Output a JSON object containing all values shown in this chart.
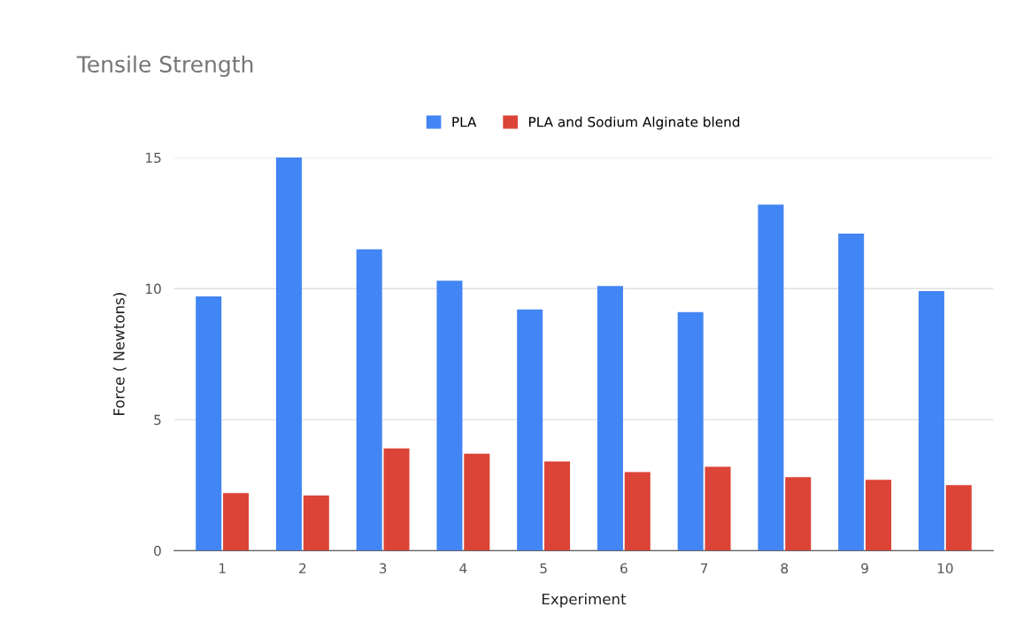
{
  "chart_data": {
    "type": "bar",
    "title": "Tensile Strength",
    "xlabel": "Experiment",
    "ylabel": "Force ( Newtons)",
    "categories": [
      "1",
      "2",
      "3",
      "4",
      "5",
      "6",
      "7",
      "8",
      "9",
      "10"
    ],
    "series": [
      {
        "name": "PLA",
        "color": "#4285f4",
        "values": [
          9.7,
          15,
          11.5,
          10.3,
          9.2,
          10.1,
          9.1,
          13.2,
          12.1,
          9.9
        ]
      },
      {
        "name": "PLA and Sodium Alginate blend",
        "color": "#db4437",
        "values": [
          2.2,
          2.1,
          3.9,
          3.7,
          3.4,
          3.0,
          3.2,
          2.8,
          2.7,
          2.5
        ]
      }
    ],
    "ylim": [
      0,
      15
    ],
    "yticks": [
      0,
      5,
      10,
      15
    ],
    "grid": "y",
    "legend": "top"
  }
}
